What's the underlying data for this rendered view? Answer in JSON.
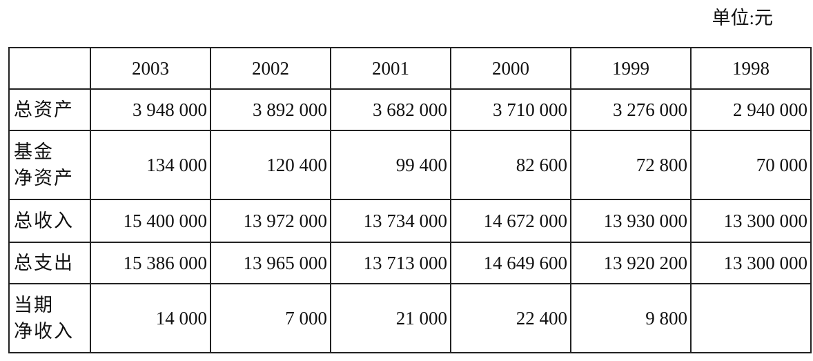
{
  "unit": "单位:元",
  "table": {
    "columns": [
      "2003",
      "2002",
      "2001",
      "2000",
      "1999",
      "1998"
    ],
    "rows": [
      {
        "label": [
          "总资产"
        ],
        "values": [
          "3 948 000",
          "3 892 000",
          "3 682 000",
          "3 710 000",
          "3 276 000",
          "2 940 000"
        ]
      },
      {
        "label": [
          "基金",
          "净资产"
        ],
        "values": [
          "134 000",
          "120 400",
          "99 400",
          "82 600",
          "72 800",
          "70 000"
        ]
      },
      {
        "label": [
          "总收入"
        ],
        "values": [
          "15 400 000",
          "13 972 000",
          "13 734 000",
          "14 672 000",
          "13 930 000",
          "13 300 000"
        ]
      },
      {
        "label": [
          "总支出"
        ],
        "values": [
          "15 386 000",
          "13 965 000",
          "13 713 000",
          "14 649 600",
          "13 920 200",
          "13 300 000"
        ]
      },
      {
        "label": [
          "当期",
          "净收入"
        ],
        "values": [
          "14 000",
          "7 000",
          "21 000",
          "22 400",
          "9 800",
          null
        ]
      }
    ]
  }
}
